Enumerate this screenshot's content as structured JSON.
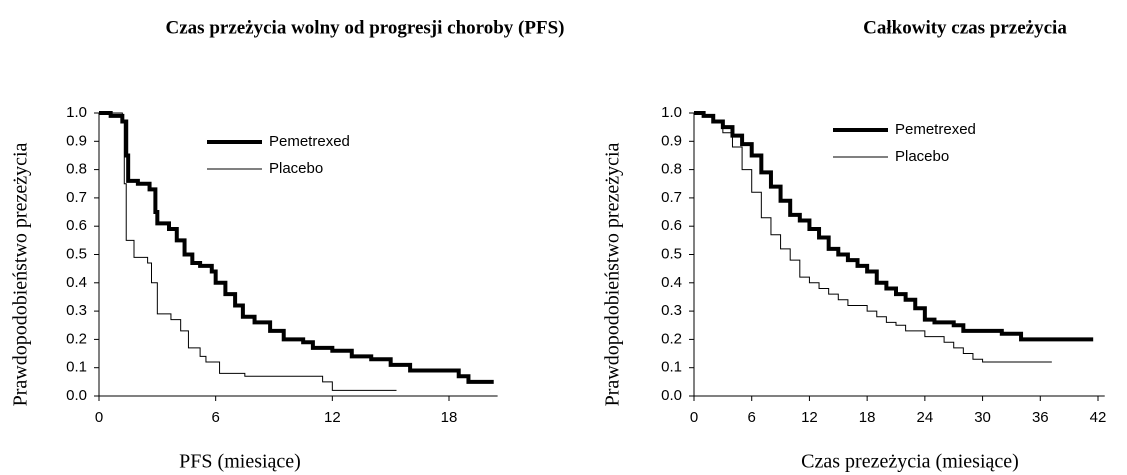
{
  "chart_data": [
    {
      "type": "line",
      "step": true,
      "title": "Czas przeżycia wolny od progresji choroby (PFS)",
      "x_label": "PFS (miesiące)",
      "y_label": "Prawdopodobieństwo prezeżycia",
      "xlim": [
        0,
        20.5
      ],
      "ylim": [
        0,
        1
      ],
      "xticks": [
        0,
        6,
        12,
        18
      ],
      "yticks": [
        {
          "value": 0,
          "label": "0.0"
        },
        0.1,
        0.2,
        0.3,
        0.4,
        0.5,
        0.6,
        0.7,
        0.8,
        0.9,
        {
          "value": 1,
          "label": "1.0"
        }
      ],
      "legend": "upper-center",
      "series": [
        {
          "name": "Pemetrexed",
          "color": "#000000",
          "width": 4,
          "x": [
            0,
            0.6,
            1.2,
            1.4,
            1.5,
            2.0,
            2.6,
            2.9,
            3.0,
            3.6,
            4.0,
            4.4,
            4.8,
            5.2,
            5.8,
            6.0,
            6.5,
            7.0,
            7.4,
            8.0,
            8.8,
            9.5,
            10.5,
            11.0,
            12.0,
            13.0,
            14.0,
            15.0,
            16.0,
            18.5,
            19.0,
            20.3
          ],
          "values": [
            1.0,
            0.99,
            0.97,
            0.85,
            0.76,
            0.75,
            0.73,
            0.65,
            0.61,
            0.59,
            0.55,
            0.5,
            0.47,
            0.46,
            0.44,
            0.4,
            0.36,
            0.32,
            0.28,
            0.26,
            0.23,
            0.2,
            0.19,
            0.17,
            0.16,
            0.14,
            0.13,
            0.11,
            0.09,
            0.07,
            0.05,
            0.05
          ]
        },
        {
          "name": "Placebo",
          "color": "#000000",
          "width": 1,
          "x": [
            0,
            1.2,
            1.3,
            1.4,
            1.8,
            2.5,
            2.7,
            3.0,
            3.7,
            4.2,
            4.6,
            5.2,
            5.5,
            6.2,
            7.5,
            11.5,
            12.0,
            15.3
          ],
          "values": [
            1.0,
            0.97,
            0.75,
            0.55,
            0.49,
            0.47,
            0.4,
            0.29,
            0.27,
            0.23,
            0.17,
            0.14,
            0.12,
            0.08,
            0.07,
            0.05,
            0.02,
            0.02
          ]
        }
      ]
    },
    {
      "type": "line",
      "step": true,
      "title": "Całkowity czas przeżycia",
      "x_label": "Czas prezeżycia (miesiące)",
      "y_label": "Prawdopodobieństwo prezeżycia",
      "xlim": [
        0,
        42.7
      ],
      "ylim": [
        0,
        1
      ],
      "xticks": [
        0,
        6,
        12,
        18,
        24,
        30,
        36,
        42
      ],
      "yticks": [
        {
          "value": 0,
          "label": "0.0"
        },
        0.1,
        0.2,
        0.3,
        0.4,
        0.5,
        0.6,
        0.7,
        0.8,
        0.9,
        {
          "value": 1,
          "label": "1.0"
        }
      ],
      "legend": "upper-center",
      "series": [
        {
          "name": "Pemetrexed",
          "color": "#000000",
          "width": 4,
          "x": [
            0,
            1,
            2,
            3,
            4,
            5,
            6,
            7,
            8,
            9,
            10,
            11,
            12,
            13,
            14,
            15,
            16,
            17,
            18,
            19,
            20,
            21,
            22,
            23,
            24,
            25,
            27,
            28,
            31,
            32,
            34,
            41.5
          ],
          "values": [
            1.0,
            0.99,
            0.97,
            0.95,
            0.92,
            0.89,
            0.85,
            0.79,
            0.74,
            0.69,
            0.64,
            0.62,
            0.59,
            0.56,
            0.52,
            0.5,
            0.48,
            0.46,
            0.44,
            0.4,
            0.38,
            0.36,
            0.34,
            0.31,
            0.27,
            0.26,
            0.25,
            0.23,
            0.23,
            0.22,
            0.2,
            0.2
          ]
        },
        {
          "name": "Placebo",
          "color": "#000000",
          "width": 1,
          "x": [
            0,
            1,
            2,
            3,
            4,
            5,
            6,
            7,
            8,
            9,
            10,
            11,
            12,
            13,
            14,
            15,
            16,
            18,
            19,
            20,
            21,
            22,
            24,
            26,
            27,
            28,
            29,
            30,
            37.2
          ],
          "values": [
            1.0,
            0.99,
            0.97,
            0.93,
            0.88,
            0.8,
            0.72,
            0.63,
            0.57,
            0.52,
            0.48,
            0.42,
            0.4,
            0.38,
            0.36,
            0.34,
            0.32,
            0.3,
            0.28,
            0.26,
            0.25,
            0.23,
            0.21,
            0.19,
            0.17,
            0.15,
            0.13,
            0.12,
            0.12
          ]
        }
      ]
    }
  ]
}
